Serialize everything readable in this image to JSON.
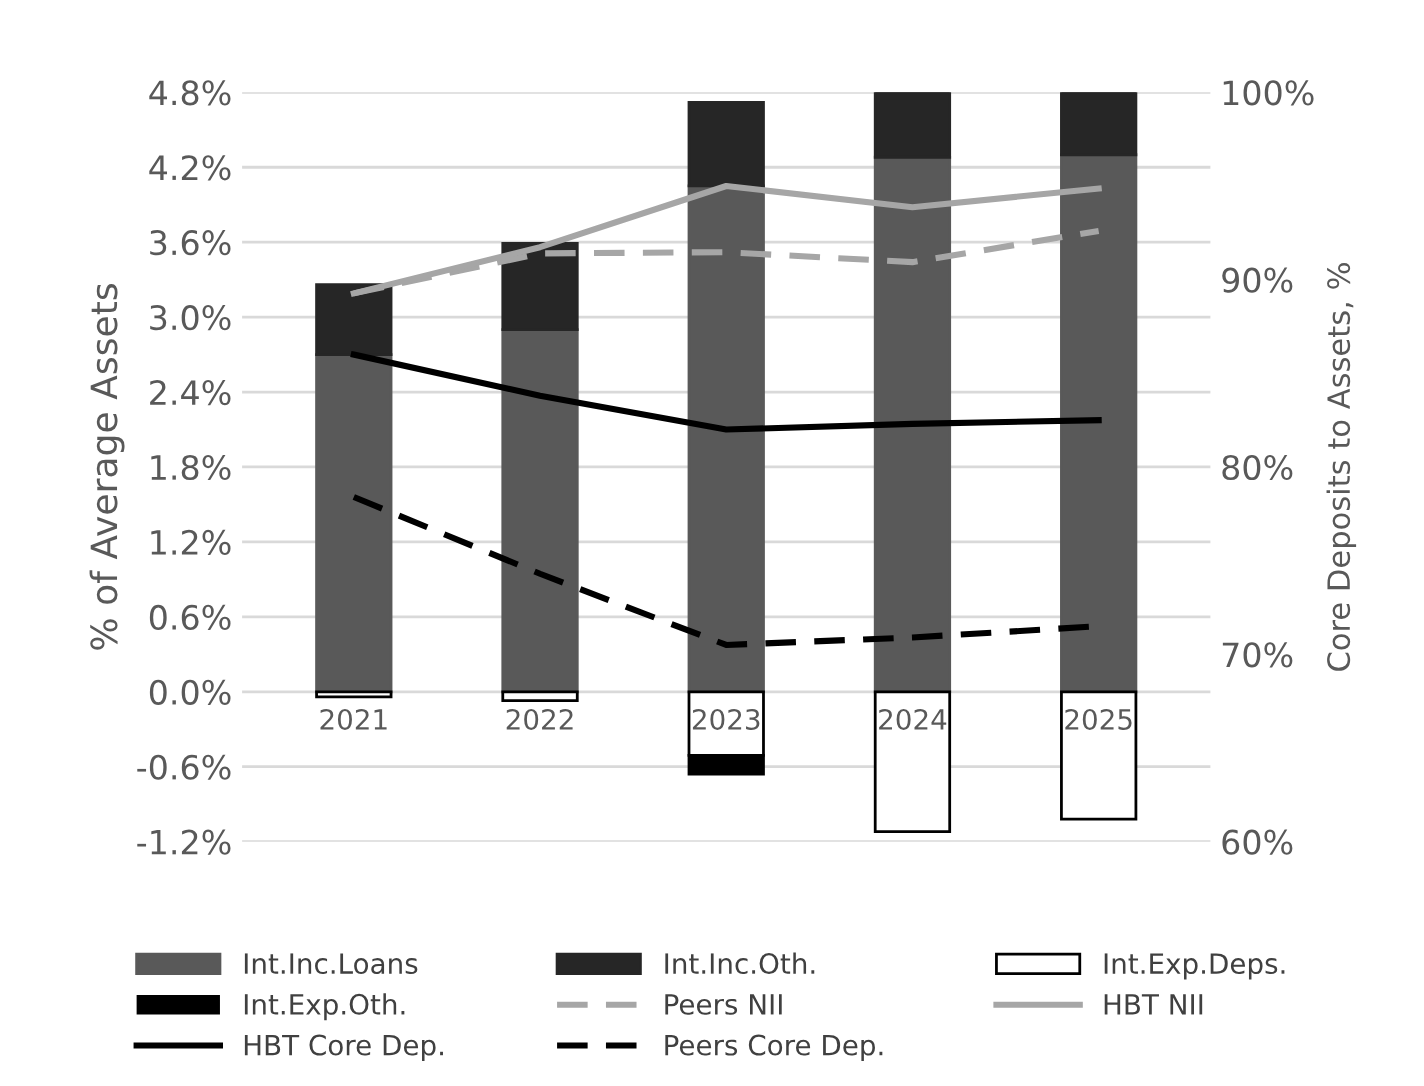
{
  "chart_data": {
    "type": "bar",
    "stacked": true,
    "ylabel": "% of Average Assets",
    "y2label": "Core Deposits to Assets, %",
    "categories": [
      "2021",
      "2022",
      "2023",
      "2024",
      "2025"
    ],
    "series": [
      {
        "name": "Int.Inc.Loans",
        "color": "#595959",
        "values": [
          2.7,
          2.9,
          4.05,
          4.28,
          4.3
        ]
      },
      {
        "name": "Int.Inc.Oth.",
        "color": "#262626",
        "values": [
          0.56,
          0.69,
          0.67,
          0.52,
          0.5
        ]
      },
      {
        "name": "Int.Exp.Deps.",
        "color": "#ffffff",
        "values": [
          -0.04,
          -0.07,
          -0.51,
          -1.12,
          -1.02
        ]
      },
      {
        "name": "Int.Exp.Oth.",
        "color": "#000000",
        "values": [
          0,
          0,
          -0.15,
          0,
          0
        ]
      },
      {
        "name": "Peers NII",
        "type": "line",
        "line_style": "dashed",
        "color": "#a6a6a6",
        "values": [
          3.19,
          3.51,
          3.52,
          3.44,
          3.69
        ]
      },
      {
        "name": "HBT NII",
        "type": "line",
        "line_style": "solid",
        "color": "#a6a6a6",
        "values": [
          3.19,
          3.56,
          4.05,
          3.88,
          4.03
        ]
      },
      {
        "name": "HBT Core Dep.",
        "type": "line",
        "line_style": "solid",
        "axis": "y2",
        "color": "#000000",
        "values": [
          86.0,
          83.8,
          82.0,
          82.3,
          82.5
        ]
      },
      {
        "name": "Peers Core Dep.",
        "type": "line",
        "line_style": "dashed",
        "axis": "y2",
        "color": "#000000",
        "values": [
          78.4,
          74.3,
          70.5,
          70.9,
          71.5
        ]
      }
    ],
    "ylim": [
      -1.2,
      4.8
    ],
    "yticks": [
      {
        "value": -1.2,
        "label": "-1.2%"
      },
      {
        "value": -0.6,
        "label": "-0.6%"
      },
      {
        "value": 0,
        "label": "0.0%"
      },
      {
        "value": 0.6,
        "label": "0.6%"
      },
      {
        "value": 1.2,
        "label": "1.2%"
      },
      {
        "value": 1.8,
        "label": "1.8%"
      },
      {
        "value": 2.4,
        "label": "2.4%"
      },
      {
        "value": 3.0,
        "label": "3.0%"
      },
      {
        "value": 3.6,
        "label": "3.6%"
      },
      {
        "value": 4.2,
        "label": "4.2%"
      },
      {
        "value": 4.8,
        "label": "4.8%"
      }
    ],
    "y2lim": [
      60,
      100
    ],
    "y2ticks": [
      {
        "value": 60,
        "label": "60%"
      },
      {
        "value": 70,
        "label": "70%"
      },
      {
        "value": 80,
        "label": "80%"
      },
      {
        "value": 90,
        "label": "90%"
      },
      {
        "value": 100,
        "label": "100%"
      }
    ],
    "grid": "y",
    "legend": "bottom"
  }
}
